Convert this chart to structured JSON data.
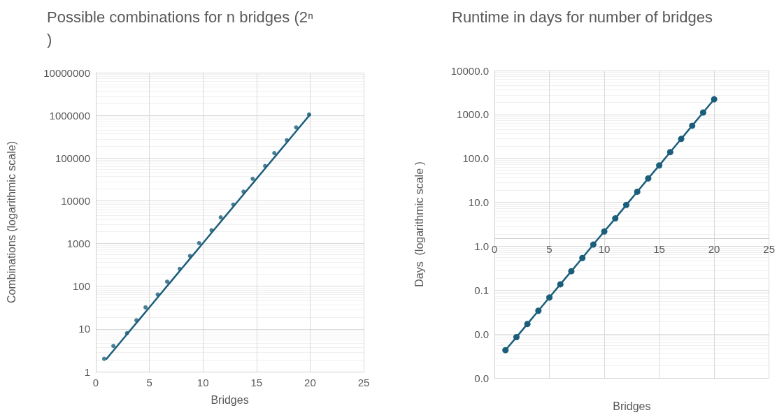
{
  "chart_data": [
    {
      "type": "line",
      "title": "Possible combinations for n bridges (2ⁿ)",
      "xlabel": "Bridges",
      "ylabel": "Combinations (logarithmic scale)",
      "log": "y",
      "grid": true,
      "xlim": [
        0,
        25
      ],
      "xticks": [
        0,
        5,
        10,
        15,
        20,
        25
      ],
      "ylim": [
        1,
        10000000
      ],
      "yticks": [
        1,
        10,
        100,
        1000,
        10000,
        100000,
        1000000,
        10000000
      ],
      "series": [
        {
          "marker": "none",
          "color": "#1b5e7b",
          "x": [
            1,
            2,
            3,
            4,
            5,
            6,
            7,
            8,
            9,
            10,
            11,
            12,
            13,
            14,
            15,
            16,
            17,
            18,
            19,
            20
          ],
          "values": [
            2,
            4,
            8,
            16,
            32,
            64,
            128,
            256,
            512,
            1024,
            2048,
            4096,
            8192,
            16384,
            32768,
            65536,
            131072,
            262144,
            524288,
            1048576
          ]
        },
        {
          "type": "scatter",
          "marker": "circle",
          "color": "#1b5e7b",
          "x": [
            0.78,
            1.64,
            2.91,
            3.79,
            4.64,
            5.78,
            6.66,
            7.83,
            8.79,
            9.64,
            10.8,
            11.66,
            12.83,
            13.79,
            14.64,
            15.8,
            16.66,
            17.83,
            18.7,
            19.9
          ],
          "values": [
            2,
            4,
            8,
            16,
            32,
            64,
            128,
            256,
            512,
            1024,
            2048,
            4096,
            8192,
            16384,
            32768,
            65536,
            131072,
            262144,
            524288,
            1048576
          ]
        }
      ]
    },
    {
      "type": "line",
      "title": "Runtime in days for number of bridges",
      "xlabel": "Bridges",
      "ylabel": "Days  (logarithmic scale )",
      "log": "y",
      "grid": true,
      "xlim": [
        0,
        25
      ],
      "xticks": [
        0,
        5,
        10,
        15,
        20,
        25
      ],
      "ylim": [
        0.001,
        10000
      ],
      "yticks": [
        {
          "value": 0.001,
          "label": "0.0"
        },
        {
          "value": 0.01,
          "label": "0.0"
        },
        {
          "value": 0.1,
          "label": "0.1"
        },
        {
          "value": 1,
          "label": "1.0"
        },
        {
          "value": 10,
          "label": "10.0"
        },
        {
          "value": 100,
          "label": "100.0"
        },
        {
          "value": 1000,
          "label": "1000.0"
        },
        {
          "value": 10000,
          "label": "10000.0"
        }
      ],
      "series": [
        {
          "marker": "circle",
          "color": "#1b5e7b",
          "x": [
            1,
            2,
            3,
            4,
            5,
            6,
            7,
            8,
            9,
            10,
            11,
            12,
            13,
            14,
            15,
            16,
            17,
            18,
            19,
            20
          ],
          "values": [
            0.0043,
            0.0085,
            0.017,
            0.034,
            0.068,
            0.136,
            0.27,
            0.54,
            1.09,
            2.17,
            4.3,
            8.7,
            17.4,
            35,
            69,
            139,
            278,
            556,
            1110,
            2220
          ]
        }
      ]
    }
  ]
}
